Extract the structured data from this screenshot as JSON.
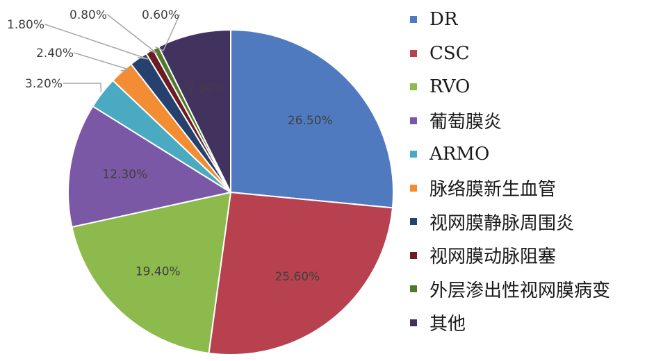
{
  "chart_data": {
    "type": "pie",
    "title": "",
    "start_angle_deg": 0,
    "direction": "clockwise",
    "legend_position": "right",
    "slices": [
      {
        "name": "DR",
        "value": 26.5,
        "label": "26.50%",
        "color": "#4f7abf",
        "label_placement": "inside"
      },
      {
        "name": "CSC",
        "value": 25.6,
        "label": "25.60%",
        "color": "#b84150",
        "label_placement": "inside"
      },
      {
        "name": "RVO",
        "value": 19.4,
        "label": "19.40%",
        "color": "#8cba4d",
        "label_placement": "inside"
      },
      {
        "name": "葡萄膜炎",
        "value": 12.3,
        "label": "12.30%",
        "color": "#7a58a6",
        "label_placement": "inside"
      },
      {
        "name": "ARMO",
        "value": 3.2,
        "label": "3.20%",
        "color": "#49aac2",
        "label_placement": "outside"
      },
      {
        "name": "脉络膜新生血管",
        "value": 2.4,
        "label": "2.40%",
        "color": "#f28d33",
        "label_placement": "outside"
      },
      {
        "name": "视网膜静脉周围炎",
        "value": 1.8,
        "label": "1.80%",
        "color": "#27416e",
        "label_placement": "outside"
      },
      {
        "name": "视网膜动脉阻塞",
        "value": 0.8,
        "label": "0.80%",
        "color": "#6e1c24",
        "label_placement": "outside"
      },
      {
        "name": "外层渗出性视网膜病变",
        "value": 0.6,
        "label": "0.60%",
        "color": "#4e7a2b",
        "label_placement": "outside"
      },
      {
        "name": "其他",
        "value": 7.3,
        "label": "7.30%",
        "color": "#42325e",
        "label_placement": "inside"
      }
    ]
  }
}
